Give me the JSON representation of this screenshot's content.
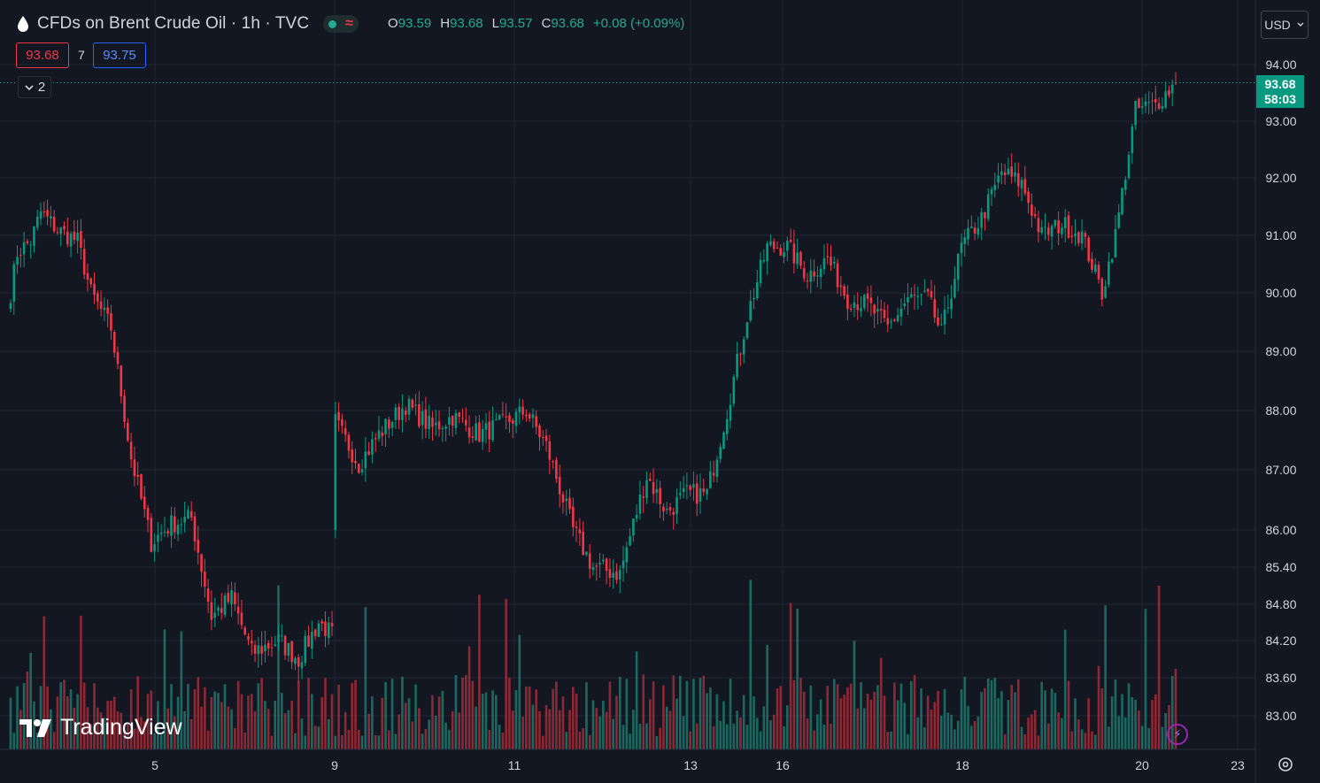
{
  "header": {
    "symbol": "CFDs on Brent Crude Oil · 1h · TVC",
    "approx_glyph": "≈",
    "ohlc": {
      "o_label": "O",
      "o": "93.59",
      "h_label": "H",
      "h": "93.68",
      "l_label": "L",
      "l": "93.57",
      "c_label": "C",
      "c": "93.68",
      "change": "+0.08 (+0.09%)"
    },
    "sell_price": "93.68",
    "spread": "7",
    "buy_price": "93.75",
    "collapse_label": "2"
  },
  "currency": "USD",
  "watermark": "TradingView",
  "colors": {
    "up": "#089981",
    "down": "#f23645",
    "up_volume": "#22ab94",
    "down_volume": "#f23645",
    "background": "#131722",
    "grid": "#1f2431",
    "price_line": "#26a69a"
  },
  "chart_data": {
    "type": "candlestick",
    "interval": "1h",
    "y_axis_ticks": [
      "94.00",
      "93.00",
      "92.00",
      "91.00",
      "90.00",
      "89.00",
      "88.00",
      "87.00",
      "86.00",
      "85.40",
      "84.80",
      "84.20",
      "83.60",
      "83.00"
    ],
    "x_axis_ticks": [
      "5",
      "9",
      "11",
      "13",
      "16",
      "18",
      "20",
      "23"
    ],
    "last_price": "93.68",
    "countdown": "58:03",
    "grid": true,
    "anchors": [
      {
        "t": 0,
        "p": 90.0
      },
      {
        "t": 2,
        "p": 90.7
      },
      {
        "t": 6,
        "p": 90.9
      },
      {
        "t": 9,
        "p": 91.4
      },
      {
        "t": 14,
        "p": 91.1
      },
      {
        "t": 20,
        "p": 90.9
      },
      {
        "t": 24,
        "p": 90.0
      },
      {
        "t": 30,
        "p": 89.4
      },
      {
        "t": 36,
        "p": 87.2
      },
      {
        "t": 42,
        "p": 85.8
      },
      {
        "t": 48,
        "p": 86.1
      },
      {
        "t": 54,
        "p": 86.2
      },
      {
        "t": 60,
        "p": 84.6
      },
      {
        "t": 66,
        "p": 84.9
      },
      {
        "t": 72,
        "p": 84.0
      },
      {
        "t": 80,
        "p": 84.2
      },
      {
        "t": 86,
        "p": 83.9
      },
      {
        "t": 92,
        "p": 84.5
      },
      {
        "t": 96,
        "p": 84.3
      },
      {
        "t": 97,
        "p": 87.8
      },
      {
        "t": 104,
        "p": 87.1
      },
      {
        "t": 110,
        "p": 87.6
      },
      {
        "t": 118,
        "p": 88.1
      },
      {
        "t": 126,
        "p": 87.7
      },
      {
        "t": 132,
        "p": 87.9
      },
      {
        "t": 140,
        "p": 87.6
      },
      {
        "t": 148,
        "p": 87.8
      },
      {
        "t": 154,
        "p": 88.0
      },
      {
        "t": 160,
        "p": 87.4
      },
      {
        "t": 168,
        "p": 86.0
      },
      {
        "t": 174,
        "p": 85.4
      },
      {
        "t": 182,
        "p": 85.3
      },
      {
        "t": 190,
        "p": 86.9
      },
      {
        "t": 196,
        "p": 86.3
      },
      {
        "t": 202,
        "p": 86.6
      },
      {
        "t": 208,
        "p": 86.6
      },
      {
        "t": 214,
        "p": 88.0
      },
      {
        "t": 220,
        "p": 89.6
      },
      {
        "t": 226,
        "p": 90.8
      },
      {
        "t": 232,
        "p": 90.8
      },
      {
        "t": 238,
        "p": 90.3
      },
      {
        "t": 244,
        "p": 90.6
      },
      {
        "t": 250,
        "p": 89.9
      },
      {
        "t": 256,
        "p": 89.8
      },
      {
        "t": 262,
        "p": 89.4
      },
      {
        "t": 268,
        "p": 89.9
      },
      {
        "t": 274,
        "p": 89.9
      },
      {
        "t": 278,
        "p": 89.3
      },
      {
        "t": 284,
        "p": 90.8
      },
      {
        "t": 290,
        "p": 91.3
      },
      {
        "t": 296,
        "p": 92.1
      },
      {
        "t": 302,
        "p": 91.9
      },
      {
        "t": 308,
        "p": 91.0
      },
      {
        "t": 314,
        "p": 91.2
      },
      {
        "t": 320,
        "p": 91.0
      },
      {
        "t": 326,
        "p": 90.0
      },
      {
        "t": 330,
        "p": 91.0
      },
      {
        "t": 336,
        "p": 93.2
      },
      {
        "t": 342,
        "p": 93.3
      },
      {
        "t": 348,
        "p": 93.68
      }
    ]
  }
}
